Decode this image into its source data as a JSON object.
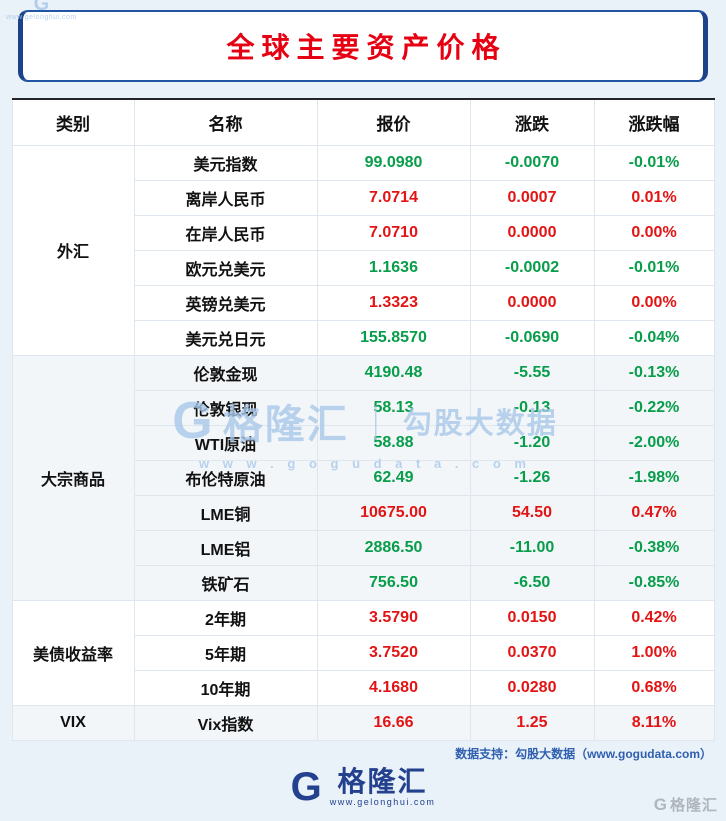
{
  "page": {
    "footer_credit": "数据支持：勾股大数据（www.gogudata.com）",
    "brand": {
      "glyph": "G",
      "name": "格隆汇",
      "url": "www.gelonghui.com"
    },
    "watermark_center": {
      "glyph": "G",
      "brand": "格隆汇",
      "divider": "｜",
      "sub": "勾股大数据",
      "url": "w w w . g o g u d a t a . c o m"
    },
    "watermark_topleft": {
      "glyph": "G",
      "url": "www.gelonghui.com"
    },
    "corner_brand": {
      "glyph": "G",
      "name": "格隆汇"
    },
    "colors": {
      "up": "#e31414",
      "down": "#089d4a",
      "title_red": "#e60012",
      "brand_blue": "#24418e",
      "page_bg": "#e9f1f9"
    }
  },
  "chart_data": {
    "type": "table",
    "title": "全球主要资产价格",
    "headers": [
      "类别",
      "名称",
      "报价",
      "涨跌",
      "涨跌幅"
    ],
    "groups": [
      {
        "category": "外汇",
        "rows": [
          {
            "name": "美元指数",
            "price": "99.0980",
            "change": "-0.0070",
            "pct": "-0.01%",
            "dir": "down"
          },
          {
            "name": "离岸人民币",
            "price": "7.0714",
            "change": "0.0007",
            "pct": "0.01%",
            "dir": "up"
          },
          {
            "name": "在岸人民币",
            "price": "7.0710",
            "change": "0.0000",
            "pct": "0.00%",
            "dir": "up"
          },
          {
            "name": "欧元兑美元",
            "price": "1.1636",
            "change": "-0.0002",
            "pct": "-0.01%",
            "dir": "down"
          },
          {
            "name": "英镑兑美元",
            "price": "1.3323",
            "change": "0.0000",
            "pct": "0.00%",
            "dir": "up"
          },
          {
            "name": "美元兑日元",
            "price": "155.8570",
            "change": "-0.0690",
            "pct": "-0.04%",
            "dir": "down"
          }
        ]
      },
      {
        "category": "大宗商品",
        "rows": [
          {
            "name": "伦敦金现",
            "price": "4190.48",
            "change": "-5.55",
            "pct": "-0.13%",
            "dir": "down"
          },
          {
            "name": "伦敦银现",
            "price": "58.13",
            "change": "-0.13",
            "pct": "-0.22%",
            "dir": "down"
          },
          {
            "name": "WTI原油",
            "price": "58.88",
            "change": "-1.20",
            "pct": "-2.00%",
            "dir": "down"
          },
          {
            "name": "布伦特原油",
            "price": "62.49",
            "change": "-1.26",
            "pct": "-1.98%",
            "dir": "down"
          },
          {
            "name": "LME铜",
            "price": "10675.00",
            "change": "54.50",
            "pct": "0.47%",
            "dir": "up"
          },
          {
            "name": "LME铝",
            "price": "2886.50",
            "change": "-11.00",
            "pct": "-0.38%",
            "dir": "down"
          },
          {
            "name": "铁矿石",
            "price": "756.50",
            "change": "-6.50",
            "pct": "-0.85%",
            "dir": "down"
          }
        ]
      },
      {
        "category": "美债收益率",
        "rows": [
          {
            "name": "2年期",
            "price": "3.5790",
            "change": "0.0150",
            "pct": "0.42%",
            "dir": "up"
          },
          {
            "name": "5年期",
            "price": "3.7520",
            "change": "0.0370",
            "pct": "1.00%",
            "dir": "up"
          },
          {
            "name": "10年期",
            "price": "4.1680",
            "change": "0.0280",
            "pct": "0.68%",
            "dir": "up"
          }
        ]
      },
      {
        "category": "VIX",
        "rows": [
          {
            "name": "Vix指数",
            "price": "16.66",
            "change": "1.25",
            "pct": "8.11%",
            "dir": "up"
          }
        ]
      }
    ]
  }
}
